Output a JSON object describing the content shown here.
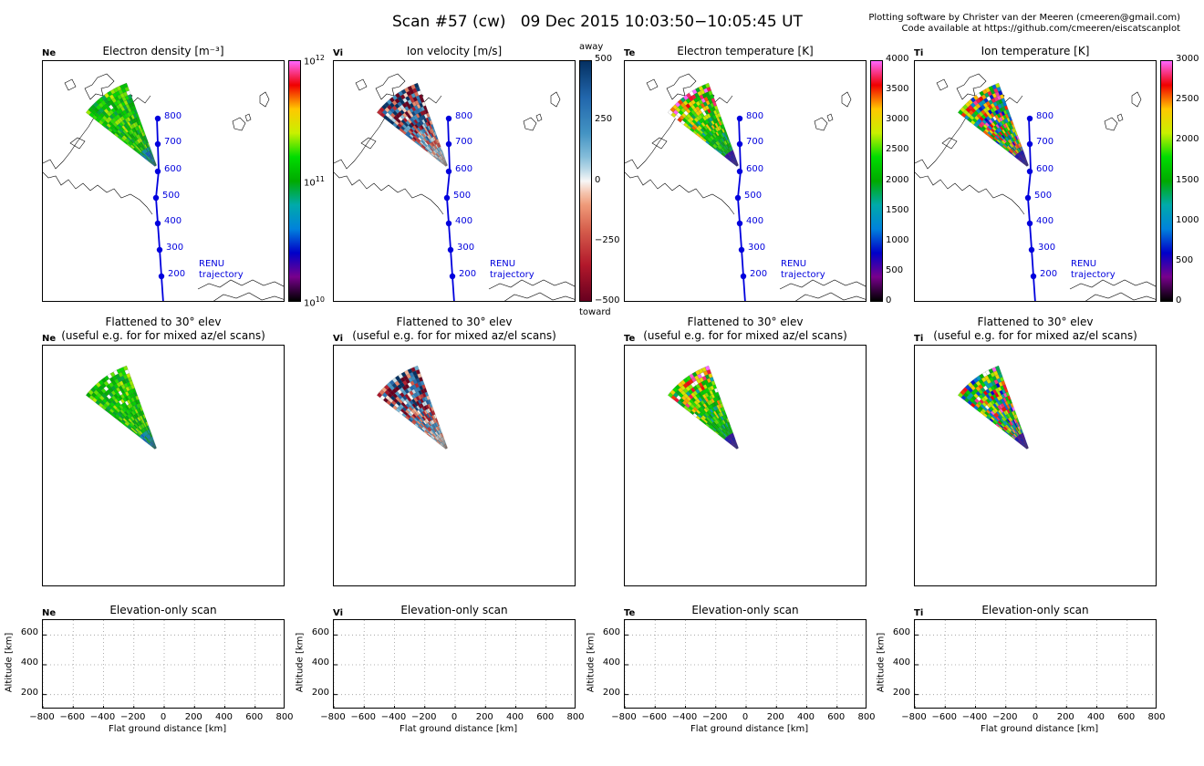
{
  "header": {
    "title": "Scan #57 (cw)   09 Dec 2015 10:03:50−10:05:45 UT",
    "credit_line1": "Plotting software by Christer van der Meeren (cmeeren@gmail.com)",
    "credit_line2": "Code available at https://github.com/cmeeren/eiscatscanplot"
  },
  "panels": [
    {
      "label": "Ne",
      "title": "Electron density [m⁻³]",
      "palette": "ne"
    },
    {
      "label": "Vi",
      "title": "Ion velocity [m/s]",
      "palette": "vi"
    },
    {
      "label": "Te",
      "title": "Electron temperature [K]",
      "palette": "te"
    },
    {
      "label": "Ti",
      "title": "Ion temperature [K]",
      "palette": "ti"
    }
  ],
  "flattened": {
    "title_line1": "Flattened to 30° elev",
    "title_line2": "(useful e.g. for for mixed az/el scans)"
  },
  "elevation": {
    "title": "Elevation-only scan",
    "xlabel": "Flat ground distance [km]",
    "ylabel": "Altitude [km]",
    "xticks": [
      "−800",
      "−600",
      "−400",
      "−200",
      "0",
      "200",
      "400",
      "600",
      "800"
    ],
    "yticks": [
      "600",
      "400",
      "200"
    ]
  },
  "colorbars": [
    {
      "ticks": [
        {
          "base": "10",
          "exp": "12",
          "pos": 0
        },
        {
          "base": "10",
          "exp": "11",
          "pos": 0.5
        },
        {
          "base": "10",
          "exp": "10",
          "pos": 1
        }
      ]
    },
    {
      "top_label": "away",
      "bottom_label": "toward",
      "ticks": [
        {
          "text": "500",
          "pos": 0
        },
        {
          "text": "250",
          "pos": 0.25
        },
        {
          "text": "0",
          "pos": 0.5
        },
        {
          "text": "−250",
          "pos": 0.75
        },
        {
          "text": "−500",
          "pos": 1
        }
      ]
    },
    {
      "ticks": [
        {
          "text": "4000",
          "pos": 0
        },
        {
          "text": "3500",
          "pos": 0.125
        },
        {
          "text": "3000",
          "pos": 0.25
        },
        {
          "text": "2500",
          "pos": 0.375
        },
        {
          "text": "2000",
          "pos": 0.5
        },
        {
          "text": "1500",
          "pos": 0.625
        },
        {
          "text": "1000",
          "pos": 0.75
        },
        {
          "text": "500",
          "pos": 0.875
        },
        {
          "text": "0",
          "pos": 1
        }
      ]
    },
    {
      "ticks": [
        {
          "text": "3000",
          "pos": 0
        },
        {
          "text": "2500",
          "pos": 0.1667
        },
        {
          "text": "2000",
          "pos": 0.3333
        },
        {
          "text": "1500",
          "pos": 0.5
        },
        {
          "text": "1000",
          "pos": 0.6667
        },
        {
          "text": "500",
          "pos": 0.8333
        },
        {
          "text": "0",
          "pos": 1
        }
      ]
    }
  ],
  "trajectory": {
    "label_line1": "RENU",
    "label_line2": "trajectory",
    "color": "#0000dd",
    "altitude_markers": [
      "800",
      "700",
      "600",
      "500",
      "400",
      "300",
      "200"
    ]
  },
  "chart_data": {
    "type": "scatter",
    "title": "Elevation-only scan",
    "xlabel": "Flat ground distance [km]",
    "ylabel": "Altitude [km]",
    "xlim": [
      -800,
      800
    ],
    "ylim": [
      100,
      700
    ],
    "grid": true,
    "series": []
  }
}
